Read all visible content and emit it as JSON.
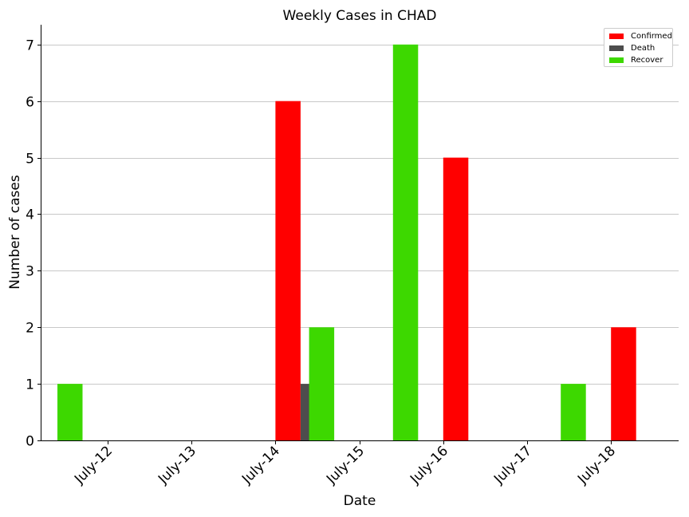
{
  "chart_data": {
    "type": "bar",
    "title": "Weekly Cases in CHAD",
    "xlabel": "Date",
    "ylabel": "Number of cases",
    "categories": [
      "July-12",
      "July-13",
      "July-14",
      "July-15",
      "July-16",
      "July-17",
      "July-18"
    ],
    "series": [
      {
        "name": "Confirmed",
        "color": "#ff0000",
        "values": [
          0,
          0,
          6,
          0,
          5,
          0,
          2
        ]
      },
      {
        "name": "Death",
        "color": "#4d4d4d",
        "values": [
          0,
          0,
          1,
          0,
          0,
          0,
          0
        ]
      },
      {
        "name": "Recover",
        "color": "#3dd800",
        "values": [
          1,
          0,
          0,
          2,
          7,
          0,
          1
        ]
      }
    ],
    "yticks": [
      "0",
      "1",
      "2",
      "3",
      "4",
      "5",
      "6",
      "7"
    ],
    "ylim": [
      0,
      7.35
    ],
    "grid": "horizontal",
    "legend": "top-right"
  }
}
